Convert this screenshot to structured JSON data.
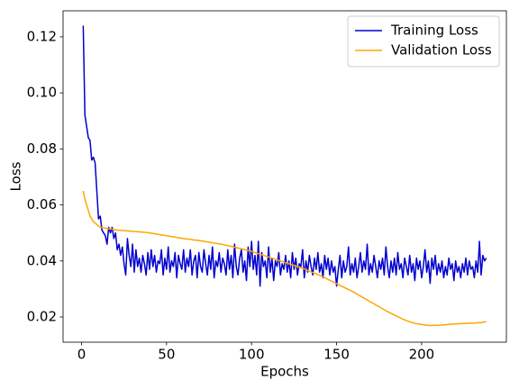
{
  "chart_data": {
    "type": "line",
    "xlabel": "Epochs",
    "ylabel": "Loss",
    "x": [
      1,
      2,
      3,
      4,
      5,
      6,
      7,
      8,
      9,
      10,
      11,
      12,
      13,
      14,
      15,
      16,
      17,
      18,
      19,
      20,
      21,
      22,
      23,
      24,
      25,
      26,
      27,
      28,
      29,
      30,
      31,
      32,
      33,
      34,
      35,
      36,
      37,
      38,
      39,
      40,
      41,
      42,
      43,
      44,
      45,
      46,
      47,
      48,
      49,
      50,
      51,
      52,
      53,
      54,
      55,
      56,
      57,
      58,
      59,
      60,
      61,
      62,
      63,
      64,
      65,
      66,
      67,
      68,
      69,
      70,
      71,
      72,
      73,
      74,
      75,
      76,
      77,
      78,
      79,
      80,
      81,
      82,
      83,
      84,
      85,
      86,
      87,
      88,
      89,
      90,
      91,
      92,
      93,
      94,
      95,
      96,
      97,
      98,
      99,
      100,
      101,
      102,
      103,
      104,
      105,
      106,
      107,
      108,
      109,
      110,
      111,
      112,
      113,
      114,
      115,
      116,
      117,
      118,
      119,
      120,
      121,
      122,
      123,
      124,
      125,
      126,
      127,
      128,
      129,
      130,
      131,
      132,
      133,
      134,
      135,
      136,
      137,
      138,
      139,
      140,
      141,
      142,
      143,
      144,
      145,
      146,
      147,
      148,
      149,
      150,
      151,
      152,
      153,
      154,
      155,
      156,
      157,
      158,
      159,
      160,
      161,
      162,
      163,
      164,
      165,
      166,
      167,
      168,
      169,
      170,
      171,
      172,
      173,
      174,
      175,
      176,
      177,
      178,
      179,
      180,
      181,
      182,
      183,
      184,
      185,
      186,
      187,
      188,
      189,
      190,
      191,
      192,
      193,
      194,
      195,
      196,
      197,
      198,
      199,
      200,
      201,
      202,
      203,
      204,
      205,
      206,
      207,
      208,
      209,
      210,
      211,
      212,
      213,
      214,
      215,
      216,
      217,
      218,
      219,
      220,
      221,
      222,
      223,
      224,
      225,
      226,
      227,
      228,
      229,
      230,
      231,
      232,
      233,
      234,
      235,
      236,
      237,
      238
    ],
    "series": [
      {
        "name": "Training Loss",
        "color": "#0000cd",
        "values": [
          0.124,
          0.092,
          0.088,
          0.084,
          0.083,
          0.076,
          0.077,
          0.075,
          0.065,
          0.055,
          0.056,
          0.051,
          0.05,
          0.049,
          0.046,
          0.052,
          0.05,
          0.052,
          0.048,
          0.05,
          0.044,
          0.046,
          0.042,
          0.045,
          0.039,
          0.035,
          0.048,
          0.042,
          0.038,
          0.046,
          0.036,
          0.044,
          0.038,
          0.041,
          0.036,
          0.042,
          0.039,
          0.035,
          0.043,
          0.037,
          0.044,
          0.038,
          0.042,
          0.036,
          0.04,
          0.039,
          0.044,
          0.035,
          0.041,
          0.037,
          0.045,
          0.036,
          0.04,
          0.038,
          0.043,
          0.034,
          0.042,
          0.039,
          0.037,
          0.044,
          0.036,
          0.041,
          0.038,
          0.044,
          0.035,
          0.04,
          0.042,
          0.034,
          0.043,
          0.038,
          0.036,
          0.044,
          0.039,
          0.035,
          0.042,
          0.037,
          0.045,
          0.034,
          0.04,
          0.038,
          0.043,
          0.036,
          0.041,
          0.039,
          0.035,
          0.044,
          0.037,
          0.042,
          0.034,
          0.046,
          0.038,
          0.035,
          0.041,
          0.044,
          0.036,
          0.04,
          0.033,
          0.045,
          0.038,
          0.047,
          0.037,
          0.042,
          0.035,
          0.047,
          0.031,
          0.043,
          0.038,
          0.04,
          0.034,
          0.045,
          0.036,
          0.041,
          0.033,
          0.04,
          0.038,
          0.043,
          0.035,
          0.039,
          0.037,
          0.042,
          0.036,
          0.04,
          0.034,
          0.043,
          0.037,
          0.041,
          0.035,
          0.039,
          0.038,
          0.044,
          0.034,
          0.04,
          0.036,
          0.042,
          0.038,
          0.035,
          0.041,
          0.037,
          0.043,
          0.036,
          0.039,
          0.034,
          0.042,
          0.037,
          0.041,
          0.035,
          0.04,
          0.036,
          0.038,
          0.031,
          0.037,
          0.042,
          0.034,
          0.04,
          0.036,
          0.038,
          0.045,
          0.035,
          0.039,
          0.036,
          0.041,
          0.034,
          0.038,
          0.043,
          0.036,
          0.04,
          0.037,
          0.046,
          0.035,
          0.039,
          0.036,
          0.042,
          0.038,
          0.034,
          0.04,
          0.037,
          0.041,
          0.035,
          0.045,
          0.038,
          0.034,
          0.04,
          0.036,
          0.041,
          0.035,
          0.043,
          0.037,
          0.039,
          0.034,
          0.041,
          0.038,
          0.035,
          0.042,
          0.036,
          0.039,
          0.033,
          0.041,
          0.037,
          0.04,
          0.034,
          0.038,
          0.044,
          0.036,
          0.04,
          0.032,
          0.041,
          0.037,
          0.042,
          0.035,
          0.039,
          0.036,
          0.04,
          0.034,
          0.038,
          0.035,
          0.041,
          0.037,
          0.039,
          0.033,
          0.04,
          0.036,
          0.038,
          0.034,
          0.039,
          0.036,
          0.041,
          0.035,
          0.04,
          0.037,
          0.038,
          0.034,
          0.04,
          0.036,
          0.047,
          0.035,
          0.042,
          0.04,
          0.041
        ]
      },
      {
        "name": "Validation Loss",
        "color": "#ffa500",
        "values": [
          0.065,
          0.062,
          0.06,
          0.058,
          0.056,
          0.055,
          0.054,
          0.0535,
          0.053,
          0.0525,
          0.052,
          0.052,
          0.0518,
          0.0517,
          0.0516,
          0.0515,
          0.0514,
          0.0513,
          0.0512,
          0.0511,
          0.051,
          0.051,
          0.0509,
          0.0509,
          0.0508,
          0.0508,
          0.0507,
          0.0507,
          0.0506,
          0.0506,
          0.0505,
          0.0505,
          0.0504,
          0.0504,
          0.0503,
          0.0503,
          0.0502,
          0.0502,
          0.0501,
          0.05,
          0.0499,
          0.0498,
          0.0497,
          0.0496,
          0.0495,
          0.0494,
          0.0493,
          0.0492,
          0.0491,
          0.049,
          0.0489,
          0.0488,
          0.0487,
          0.0486,
          0.0485,
          0.0484,
          0.0483,
          0.0482,
          0.0481,
          0.048,
          0.0479,
          0.0478,
          0.0478,
          0.0477,
          0.0476,
          0.0475,
          0.0474,
          0.0474,
          0.0473,
          0.0472,
          0.0471,
          0.047,
          0.0469,
          0.0468,
          0.0467,
          0.0466,
          0.0465,
          0.0464,
          0.0463,
          0.0462,
          0.0461,
          0.046,
          0.0459,
          0.0457,
          0.0456,
          0.0455,
          0.0453,
          0.0452,
          0.0451,
          0.0449,
          0.0448,
          0.0446,
          0.0445,
          0.0443,
          0.0442,
          0.044,
          0.0439,
          0.0437,
          0.0436,
          0.0434,
          0.0432,
          0.043,
          0.0428,
          0.0426,
          0.0424,
          0.0422,
          0.042,
          0.0418,
          0.0416,
          0.0414,
          0.0412,
          0.041,
          0.0408,
          0.0406,
          0.0404,
          0.0402,
          0.04,
          0.0398,
          0.0396,
          0.0394,
          0.0392,
          0.039,
          0.0388,
          0.0386,
          0.0384,
          0.0382,
          0.038,
          0.0378,
          0.0376,
          0.0374,
          0.0371,
          0.0369,
          0.0366,
          0.0364,
          0.0361,
          0.0359,
          0.0356,
          0.0354,
          0.0351,
          0.0349,
          0.0346,
          0.0343,
          0.034,
          0.0337,
          0.0334,
          0.0331,
          0.0328,
          0.0325,
          0.0322,
          0.0319,
          0.0316,
          0.0313,
          0.031,
          0.0307,
          0.0304,
          0.0301,
          0.0298,
          0.0295,
          0.0292,
          0.0289,
          0.0285,
          0.0282,
          0.0278,
          0.0275,
          0.0271,
          0.0268,
          0.0264,
          0.0261,
          0.0257,
          0.0254,
          0.025,
          0.0247,
          0.0243,
          0.024,
          0.0236,
          0.0233,
          0.0229,
          0.0226,
          0.0222,
          0.0219,
          0.0216,
          0.0213,
          0.021,
          0.0207,
          0.0204,
          0.0201,
          0.0198,
          0.0195,
          0.0192,
          0.019,
          0.0187,
          0.0185,
          0.0183,
          0.0181,
          0.0179,
          0.0177,
          0.0176,
          0.0175,
          0.0174,
          0.0173,
          0.0172,
          0.0171,
          0.0171,
          0.017,
          0.017,
          0.017,
          0.017,
          0.017,
          0.017,
          0.017,
          0.0171,
          0.0171,
          0.0172,
          0.0172,
          0.0173,
          0.0173,
          0.0174,
          0.0174,
          0.0175,
          0.0175,
          0.0176,
          0.0176,
          0.0176,
          0.0177,
          0.0177,
          0.0177,
          0.0177,
          0.0178,
          0.0178,
          0.0178,
          0.0178,
          0.0179,
          0.0179,
          0.018,
          0.018,
          0.0181,
          0.0182,
          0.0183
        ]
      }
    ],
    "xlim": [
      -10.85,
      249.85
    ],
    "xticks": [
      0,
      50,
      100,
      150,
      200
    ],
    "ylim": [
      0.011,
      0.1293
    ],
    "yticks": [
      0.02,
      0.04,
      0.06,
      0.08,
      {
        "value": 0.1,
        "label": "0.10"
      },
      0.12
    ],
    "grid": false,
    "legend": "upper right"
  }
}
